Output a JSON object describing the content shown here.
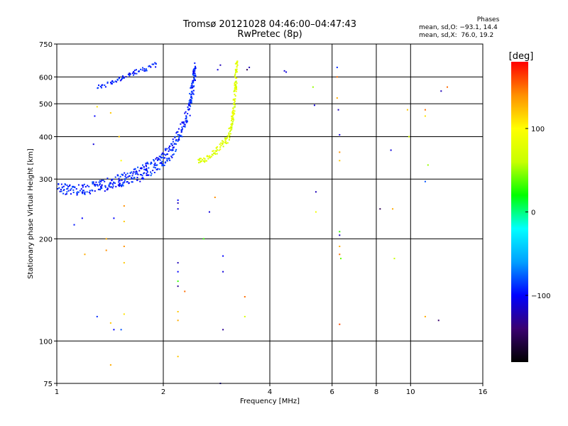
{
  "header": {
    "title_line1": "Tromsø 20121028 04:46:00–04:47:43",
    "title_line2": "RwPretec (8p)"
  },
  "phases": {
    "title": "Phases",
    "row1": "mean, sd,O: −93.1, 14.4",
    "row2": "mean, sd,X:  76.0, 19.2"
  },
  "colorbar": {
    "label": "[deg]",
    "ticks": [
      {
        "value": 100,
        "label": "100"
      },
      {
        "value": 0,
        "label": "0"
      },
      {
        "value": -100,
        "label": "−100"
      }
    ],
    "range": [
      -180,
      180
    ],
    "colors": [
      "#000000",
      "#3a0070",
      "#0000ff",
      "#00a0ff",
      "#00ffff",
      "#00ff00",
      "#c8ff00",
      "#ffff00",
      "#ff9000",
      "#ff0000"
    ]
  },
  "chart_data": {
    "type": "scatter",
    "xlabel": "Frequency [MHz]",
    "ylabel": "Stationary phase Virtual Height [km]",
    "xscale": "log",
    "yscale": "log",
    "xlim": [
      1,
      16
    ],
    "ylim": [
      75,
      750
    ],
    "x_ticks": [
      1,
      2,
      4,
      6,
      8,
      10,
      16
    ],
    "x_tick_labels": [
      "1",
      "2",
      "4",
      "6",
      "8",
      "10",
      "16"
    ],
    "y_ticks": [
      75,
      100,
      200,
      300,
      400,
      500,
      600,
      750
    ],
    "y_tick_labels": [
      "75",
      "100",
      "200",
      "300",
      "400",
      "500",
      "600",
      "750"
    ],
    "grid": true,
    "o_trace": [
      [
        1.0,
        285
      ],
      [
        1.05,
        280
      ],
      [
        1.1,
        278
      ],
      [
        1.15,
        278
      ],
      [
        1.2,
        280
      ],
      [
        1.25,
        283
      ],
      [
        1.3,
        285
      ],
      [
        1.35,
        288
      ],
      [
        1.4,
        290
      ],
      [
        1.45,
        293
      ],
      [
        1.5,
        296
      ],
      [
        1.55,
        300
      ],
      [
        1.6,
        303
      ],
      [
        1.65,
        306
      ],
      [
        1.7,
        310
      ],
      [
        1.75,
        315
      ],
      [
        1.8,
        320
      ],
      [
        1.85,
        325
      ],
      [
        1.9,
        330
      ],
      [
        1.95,
        338
      ],
      [
        2.0,
        345
      ],
      [
        2.05,
        355
      ],
      [
        2.1,
        365
      ],
      [
        2.15,
        380
      ],
      [
        2.2,
        400
      ],
      [
        2.25,
        420
      ],
      [
        2.3,
        445
      ],
      [
        2.35,
        470
      ],
      [
        2.38,
        500
      ],
      [
        2.4,
        530
      ],
      [
        2.42,
        560
      ],
      [
        2.44,
        590
      ],
      [
        2.45,
        620
      ],
      [
        2.46,
        640
      ]
    ],
    "o_upper": [
      [
        1.3,
        560
      ],
      [
        1.35,
        565
      ],
      [
        1.4,
        575
      ],
      [
        1.45,
        580
      ],
      [
        1.5,
        590
      ],
      [
        1.55,
        600
      ],
      [
        1.6,
        610
      ],
      [
        1.65,
        615
      ],
      [
        1.7,
        625
      ],
      [
        1.75,
        630
      ],
      [
        1.8,
        635
      ],
      [
        1.85,
        645
      ],
      [
        1.9,
        650
      ]
    ],
    "x_trace": [
      [
        2.5,
        335
      ],
      [
        2.6,
        340
      ],
      [
        2.7,
        350
      ],
      [
        2.8,
        360
      ],
      [
        2.9,
        375
      ],
      [
        3.0,
        385
      ],
      [
        3.05,
        400
      ],
      [
        3.1,
        420
      ],
      [
        3.12,
        440
      ],
      [
        3.15,
        460
      ],
      [
        3.17,
        490
      ],
      [
        3.18,
        520
      ],
      [
        3.2,
        560
      ],
      [
        3.21,
        600
      ],
      [
        3.22,
        640
      ],
      [
        3.23,
        660
      ]
    ],
    "scatter_points": [
      [
        1.12,
        220,
        -95
      ],
      [
        1.18,
        230,
        -100
      ],
      [
        1.3,
        490,
        110
      ],
      [
        1.28,
        460,
        -100
      ],
      [
        1.27,
        380,
        -110
      ],
      [
        1.42,
        470,
        120
      ],
      [
        1.5,
        400,
        120
      ],
      [
        1.52,
        340,
        100
      ],
      [
        1.2,
        180,
        130
      ],
      [
        1.38,
        185,
        140
      ],
      [
        1.55,
        190,
        140
      ],
      [
        1.55,
        170,
        120
      ],
      [
        1.55,
        250,
        140
      ],
      [
        1.55,
        225,
        120
      ],
      [
        1.45,
        230,
        -100
      ],
      [
        1.38,
        200,
        130
      ],
      [
        1.3,
        118,
        -90
      ],
      [
        1.42,
        113,
        120
      ],
      [
        1.55,
        120,
        110
      ],
      [
        1.45,
        108,
        -100
      ],
      [
        1.52,
        108,
        -80
      ],
      [
        1.42,
        85,
        130
      ],
      [
        2.2,
        255,
        -120
      ],
      [
        2.2,
        245,
        -110
      ],
      [
        2.2,
        260,
        -100
      ],
      [
        2.2,
        170,
        -120
      ],
      [
        2.2,
        160,
        -100
      ],
      [
        2.2,
        150,
        30
      ],
      [
        2.2,
        145,
        -130
      ],
      [
        2.3,
        140,
        150
      ],
      [
        2.2,
        122,
        120
      ],
      [
        2.2,
        115,
        130
      ],
      [
        2.2,
        90,
        120
      ],
      [
        2.6,
        200,
        30
      ],
      [
        2.7,
        240,
        -110
      ],
      [
        2.8,
        265,
        140
      ],
      [
        2.95,
        178,
        -100
      ],
      [
        2.95,
        160,
        -110
      ],
      [
        2.95,
        108,
        -130
      ],
      [
        2.9,
        75,
        -120
      ],
      [
        3.4,
        135,
        150
      ],
      [
        3.4,
        118,
        70
      ],
      [
        3.45,
        630,
        -150
      ],
      [
        3.5,
        640,
        -120
      ],
      [
        2.85,
        630,
        -110
      ],
      [
        2.9,
        650,
        -120
      ],
      [
        4.4,
        625,
        -110
      ],
      [
        4.45,
        620,
        -110
      ],
      [
        5.3,
        560,
        50
      ],
      [
        5.35,
        495,
        -110
      ],
      [
        5.4,
        275,
        -120
      ],
      [
        5.4,
        240,
        90
      ],
      [
        6.2,
        640,
        -90
      ],
      [
        6.2,
        600,
        150
      ],
      [
        6.2,
        520,
        130
      ],
      [
        6.25,
        480,
        -120
      ],
      [
        6.3,
        405,
        -110
      ],
      [
        6.3,
        360,
        140
      ],
      [
        6.3,
        340,
        120
      ],
      [
        6.3,
        210,
        30
      ],
      [
        6.3,
        205,
        -120
      ],
      [
        6.3,
        190,
        130
      ],
      [
        6.3,
        180,
        150
      ],
      [
        6.35,
        175,
        40
      ],
      [
        6.3,
        112,
        160
      ],
      [
        8.2,
        245,
        -150
      ],
      [
        8.8,
        365,
        -110
      ],
      [
        8.9,
        245,
        130
      ],
      [
        9.0,
        175,
        60
      ],
      [
        9.8,
        480,
        120
      ],
      [
        9.9,
        400,
        70
      ],
      [
        11.0,
        480,
        150
      ],
      [
        11.0,
        460,
        110
      ],
      [
        11.2,
        330,
        50
      ],
      [
        11.0,
        295,
        -80
      ],
      [
        11.0,
        118,
        130
      ],
      [
        12.0,
        115,
        -140
      ],
      [
        12.2,
        545,
        -120
      ],
      [
        12.7,
        560,
        150
      ]
    ]
  }
}
